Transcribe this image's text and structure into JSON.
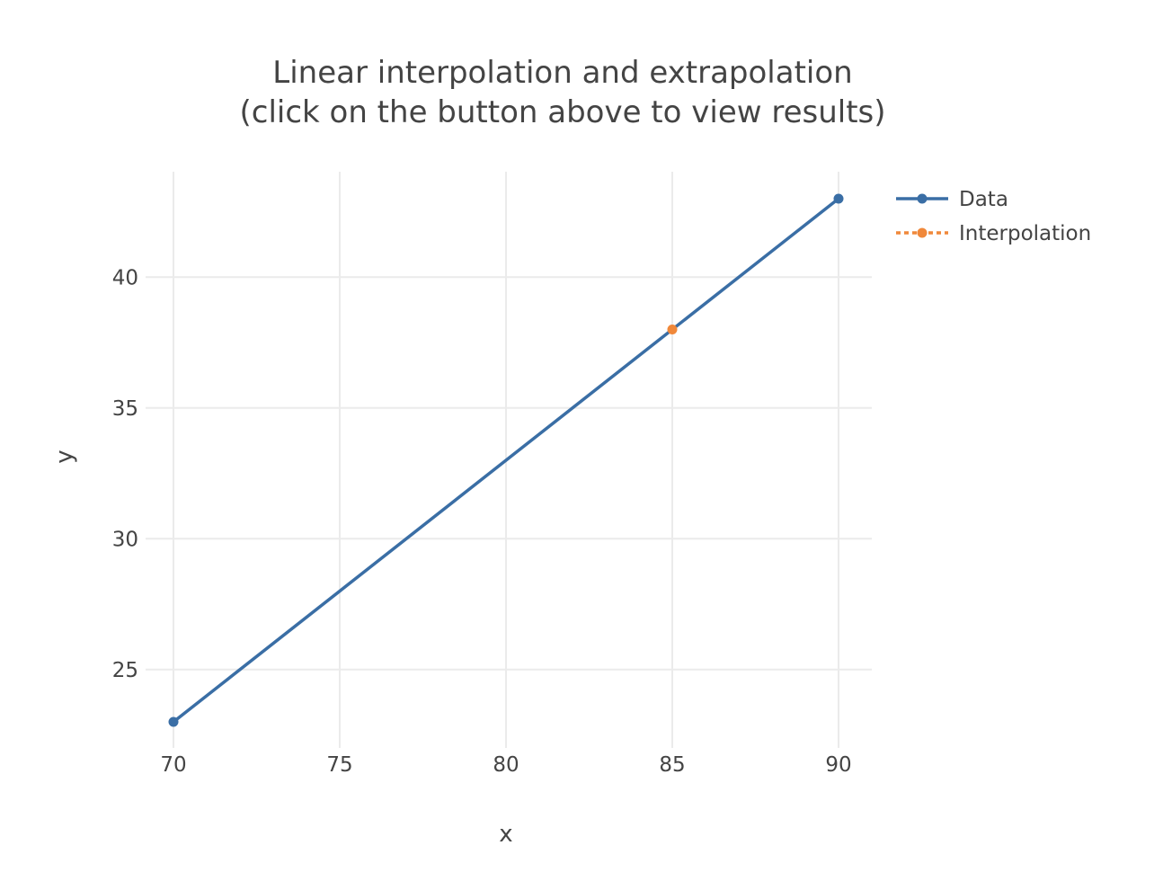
{
  "chart_data": {
    "type": "line",
    "title_lines": [
      "Linear interpolation and extrapolation",
      "(click on the button above to view results)"
    ],
    "xlabel": "x",
    "ylabel": "y",
    "xlim": [
      69,
      91
    ],
    "ylim": [
      22,
      44
    ],
    "x_ticks": [
      70,
      75,
      80,
      85,
      90
    ],
    "y_ticks": [
      25,
      30,
      35,
      40
    ],
    "grid": true,
    "legend_position": "top-right",
    "series": [
      {
        "name": "Data",
        "color": "#3a6ea5",
        "line_style": "solid",
        "markers": true,
        "x": [
          70,
          90
        ],
        "y": [
          23,
          43
        ]
      },
      {
        "name": "Interpolation",
        "color": "#f0883a",
        "line_style": "dotted",
        "markers": true,
        "x": [
          85
        ],
        "y": [
          38
        ]
      }
    ]
  }
}
